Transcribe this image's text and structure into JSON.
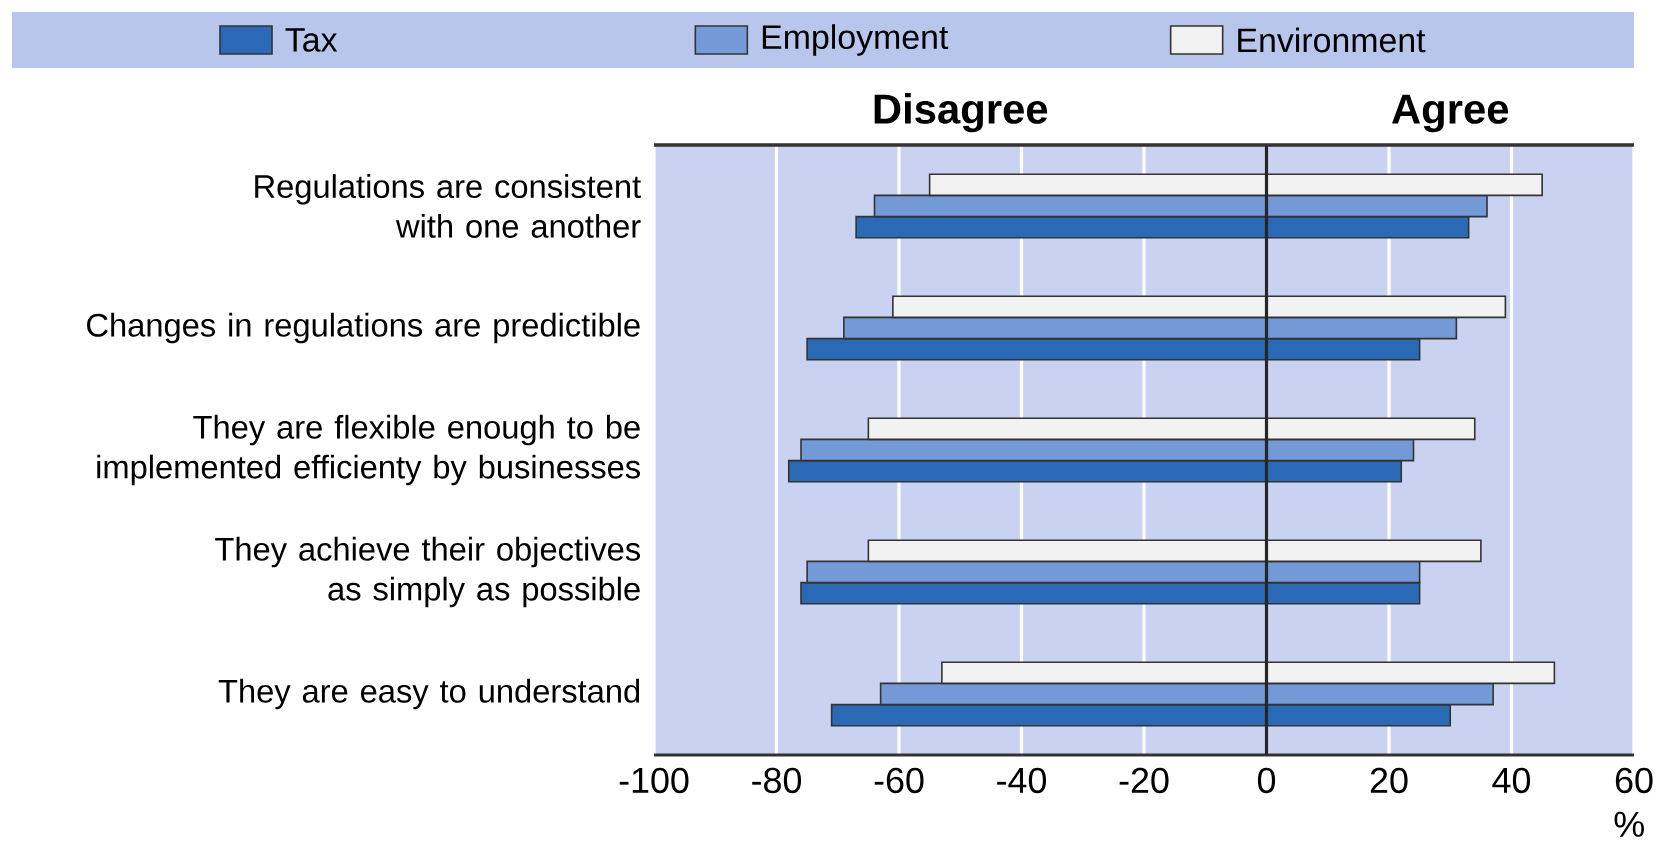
{
  "chart_data": {
    "type": "bar",
    "orientation": "horizontal",
    "categories": [
      "Regulations are consistent with one another",
      "Changes in regulations are predictible",
      "They are flexible enough to be implemented efficienty by businesses",
      "They achieve their objectives as simply as possible",
      "They are easy to understand"
    ],
    "series": [
      {
        "name": "Tax",
        "color": "#2a69b6",
        "base": [
          -67,
          -75,
          -78,
          -76,
          -71
        ],
        "values": [
          100,
          100,
          100,
          101,
          101
        ]
      },
      {
        "name": "Employment",
        "color": "#7399d6",
        "base": [
          -64,
          -69,
          -76,
          -75,
          -63
        ],
        "values": [
          100,
          100,
          100,
          100,
          100
        ]
      },
      {
        "name": "Environment",
        "color": "#f2f2f2",
        "base": [
          -55,
          -61,
          -65,
          -65,
          -53
        ],
        "values": [
          100,
          100,
          99,
          100,
          100
        ]
      }
    ],
    "xlim": [
      -100,
      60
    ],
    "xticks": [
      -100,
      -80,
      -60,
      -40,
      -20,
      0,
      20,
      40,
      60
    ],
    "xlabel": "%",
    "annotations": [
      "Disagree",
      "Agree"
    ],
    "grid": "x",
    "legend": "top"
  }
}
